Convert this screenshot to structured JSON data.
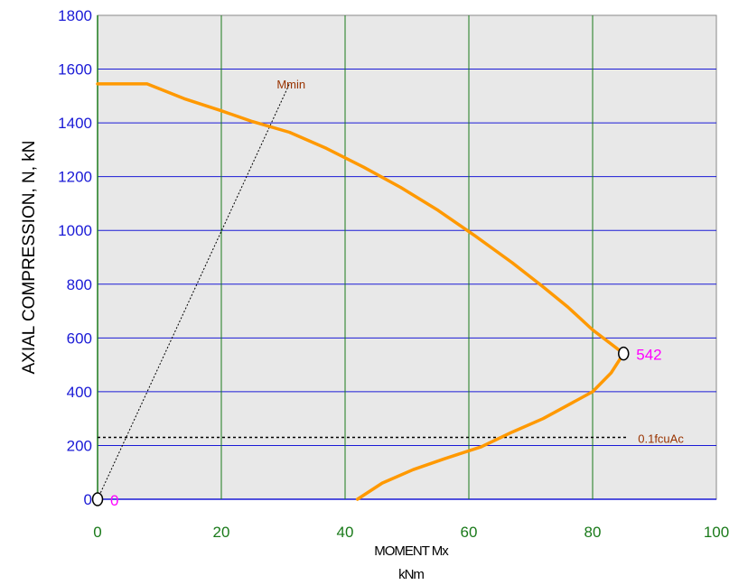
{
  "chart_data": {
    "type": "line",
    "xlabel": "MOMENT Mx",
    "xlabel_unit": "kNm",
    "ylabel": "AXIAL COMPRESSION,  N, kN",
    "xlim": [
      0,
      100
    ],
    "ylim": [
      0,
      1800
    ],
    "x_ticks": [
      0,
      20,
      40,
      60,
      80,
      100
    ],
    "y_ticks": [
      0,
      200,
      400,
      600,
      800,
      1000,
      1200,
      1400,
      1600,
      1800
    ],
    "grid": true,
    "colors": {
      "plot_bg": "#e8e8e8",
      "interaction_curve": "#ff9900",
      "hgrid": "#1a1ad6",
      "vgrid": "#1a7a1a",
      "y_tick_labels": "#1a1ad6",
      "x_tick_labels": "#1a7a1a",
      "annotation": "#993300",
      "point_label": "#ff00ff"
    },
    "series": [
      {
        "values": [
          [
            0,
            1545
          ],
          [
            8,
            1545
          ],
          [
            14,
            1490
          ],
          [
            20,
            1445
          ],
          [
            25,
            1405
          ],
          [
            31,
            1365
          ],
          [
            37,
            1305
          ],
          [
            43,
            1235
          ],
          [
            49,
            1160
          ],
          [
            55,
            1075
          ],
          [
            61,
            980
          ],
          [
            67,
            880
          ],
          [
            72,
            790
          ],
          [
            76,
            715
          ],
          [
            80,
            630
          ],
          [
            85,
            542
          ],
          [
            83,
            470
          ],
          [
            80,
            400
          ],
          [
            76,
            350
          ],
          [
            72,
            300
          ],
          [
            67,
            250
          ],
          [
            62,
            195
          ],
          [
            56,
            150
          ],
          [
            51,
            110
          ],
          [
            46,
            60
          ],
          [
            42,
            0
          ]
        ]
      }
    ],
    "reference_lines": [
      {
        "label": "Mmin",
        "from": [
          0,
          0
        ],
        "to": [
          31,
          1545
        ]
      },
      {
        "label": "0.1fcuAc",
        "y": 230,
        "x_from": 0,
        "x_to": 85
      }
    ],
    "markers": [
      {
        "x": 85,
        "y": 542,
        "label": "542"
      },
      {
        "x": 0,
        "y": 0,
        "label": "0"
      }
    ]
  }
}
